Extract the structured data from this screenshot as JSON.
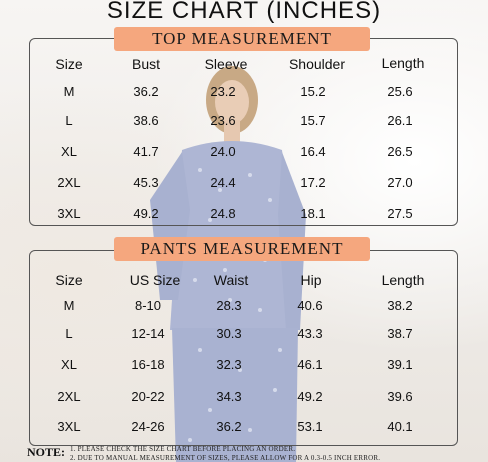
{
  "title": "SIZE CHART (INCHES)",
  "top": {
    "header": "TOP MEASUREMENT",
    "columns": [
      "Size",
      "Bust",
      "Sleeve",
      "Shoulder",
      "Length"
    ],
    "rows": [
      [
        "M",
        "36.2",
        "23.2",
        "15.2",
        "25.6"
      ],
      [
        "L",
        "38.6",
        "23.6",
        "15.7",
        "26.1"
      ],
      [
        "XL",
        "41.7",
        "24.0",
        "16.4",
        "26.5"
      ],
      [
        "2XL",
        "45.3",
        "24.4",
        "17.2",
        "27.0"
      ],
      [
        "3XL",
        "49.2",
        "24.8",
        "18.1",
        "27.5"
      ]
    ]
  },
  "pants": {
    "header": "PANTS MEASUREMENT",
    "columns": [
      "Size",
      "US Size",
      "Waist",
      "Hip",
      "Length"
    ],
    "rows": [
      [
        "M",
        "8-10",
        "28.3",
        "40.6",
        "38.2"
      ],
      [
        "L",
        "12-14",
        "30.3",
        "43.3",
        "38.7"
      ],
      [
        "XL",
        "16-18",
        "32.3",
        "46.1",
        "39.1"
      ],
      [
        "2XL",
        "20-22",
        "34.3",
        "49.2",
        "39.6"
      ],
      [
        "3XL",
        "24-26",
        "36.2",
        "53.1",
        "40.1"
      ]
    ]
  },
  "note": {
    "label": "NOTE:",
    "lines": [
      "1. PLEASE CHECK THE SIZE CHART BEFORE PLACING AN ORDER.",
      "2. DUE TO MANUAL MEASUREMENT OF SIZES, PLEASE ALLOW FOR A 0.3-0.5 INCH ERROR."
    ]
  },
  "colors": {
    "header_bg": "#f5a77e",
    "border": "#555555",
    "text": "#111111"
  }
}
